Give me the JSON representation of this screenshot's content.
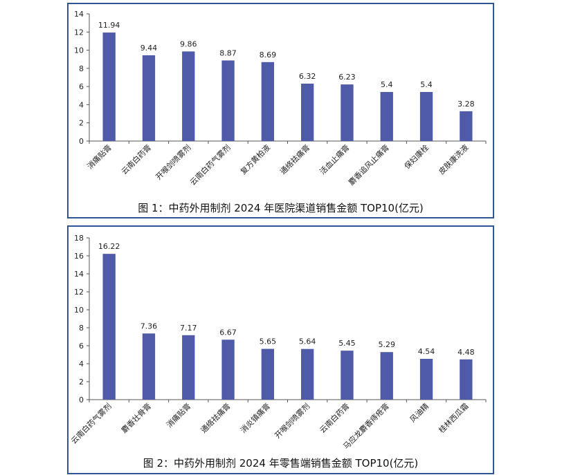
{
  "chart_data": [
    {
      "type": "bar",
      "categories": [
        "消痛贴膏",
        "云南白药膏",
        "开喉剑喷雾剂",
        "云南白药气雾剂",
        "复方黄柏液",
        "通络祛痛膏",
        "活血止痛膏",
        "麝香追风止痛膏",
        "保妇康栓",
        "皮肤康洗液"
      ],
      "values": [
        11.94,
        9.44,
        9.86,
        8.87,
        8.69,
        6.32,
        6.23,
        5.4,
        5.4,
        3.28
      ],
      "value_labels": [
        "11.94",
        "9.44",
        "9.86",
        "8.87",
        "8.69",
        "6.32",
        "6.23",
        "5.4",
        "5.4",
        "3.28"
      ],
      "ylim": [
        0,
        14
      ],
      "yticks": [
        0,
        2,
        4,
        6,
        8,
        10,
        12,
        14
      ],
      "caption": "图 1：中药外用制剂 2024 年医院渠道销售金额 TOP10(亿元)",
      "bar_color": "#4f5ba8",
      "grid": false
    },
    {
      "type": "bar",
      "categories": [
        "云南白药气雾剂",
        "麝香壮骨膏",
        "消痛贴膏",
        "通络祛痛膏",
        "消炎镇痛膏",
        "开喉剑喷雾剂",
        "云南白药膏",
        "马应龙麝香痔疮膏",
        "风油精",
        "桂林西瓜霜"
      ],
      "values": [
        16.22,
        7.36,
        7.17,
        6.67,
        5.65,
        5.64,
        5.45,
        5.29,
        4.54,
        4.48
      ],
      "value_labels": [
        "16.22",
        "7.36",
        "7.17",
        "6.67",
        "5.65",
        "5.64",
        "5.45",
        "5.29",
        "4.54",
        "4.48"
      ],
      "ylim": [
        0,
        18
      ],
      "yticks": [
        0,
        2,
        4,
        6,
        8,
        10,
        12,
        14,
        16,
        18
      ],
      "caption": "图 2：中药外用制剂 2024 年零售端销售金额 TOP10(亿元)",
      "bar_color": "#4f5ba8",
      "grid": false
    }
  ]
}
